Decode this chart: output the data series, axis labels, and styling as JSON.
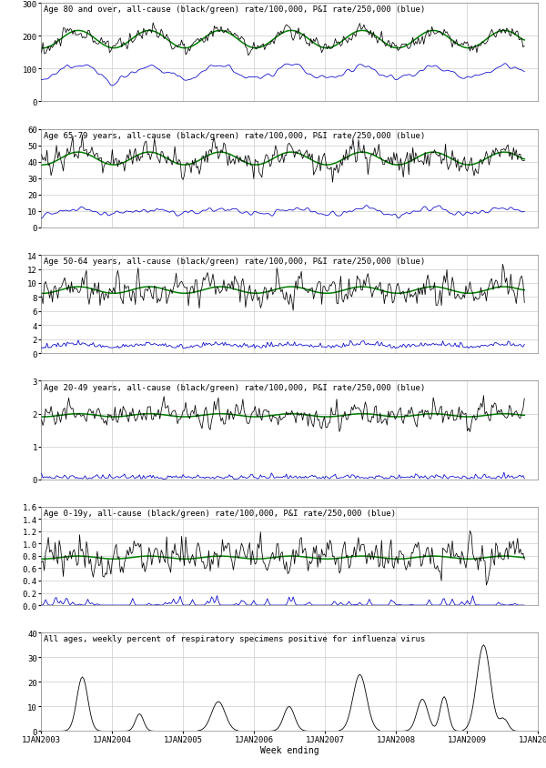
{
  "title_80plus": "Age 80 and over, all-cause (black/green) rate/100,000, P&I rate/250,000 (blue)",
  "title_6579": "Age 65-79 years, all-cause (black/green) rate/100,000, P&I rate/250,000 (blue)",
  "title_5064": "Age 50-64 years, all-cause (black/green) rate/100,000, P&I rate/250,000 (blue)",
  "title_2049": "Age 20-49 years, all-cause (black/green) rate/100,000, P&I rate/250,000 (blue)",
  "title_019": "Age 0-19y, all-cause (black/green) rate/100,000, P&I rate/250,000 (blue)",
  "title_flu": "All ages, weekly percent of respiratory specimens positive for influenza virus",
  "xlabel": "Week ending",
  "ylim_80plus": [
    0,
    300
  ],
  "ylim_6579": [
    0,
    60
  ],
  "ylim_5064": [
    0,
    14
  ],
  "ylim_2049": [
    0,
    3
  ],
  "ylim_019": [
    0,
    1.6
  ],
  "ylim_flu": [
    0,
    40
  ],
  "yticks_80plus": [
    0,
    100,
    200,
    300
  ],
  "yticks_6579": [
    0,
    10,
    20,
    30,
    40,
    50,
    60
  ],
  "yticks_5064": [
    0,
    2,
    4,
    6,
    8,
    10,
    12,
    14
  ],
  "yticks_2049": [
    0,
    1,
    2,
    3
  ],
  "yticks_019": [
    0.0,
    0.2,
    0.4,
    0.6,
    0.8,
    1.0,
    1.2,
    1.4,
    1.6
  ],
  "yticks_flu": [
    0,
    10,
    20,
    30,
    40
  ],
  "color_black": "#000000",
  "color_green": "#008000",
  "color_blue": "#0000cc",
  "bg_color": "#ffffff",
  "grid_color": "#cccccc",
  "title_fontsize": 6.5,
  "tick_fontsize": 6.5,
  "n_weeks": 356
}
